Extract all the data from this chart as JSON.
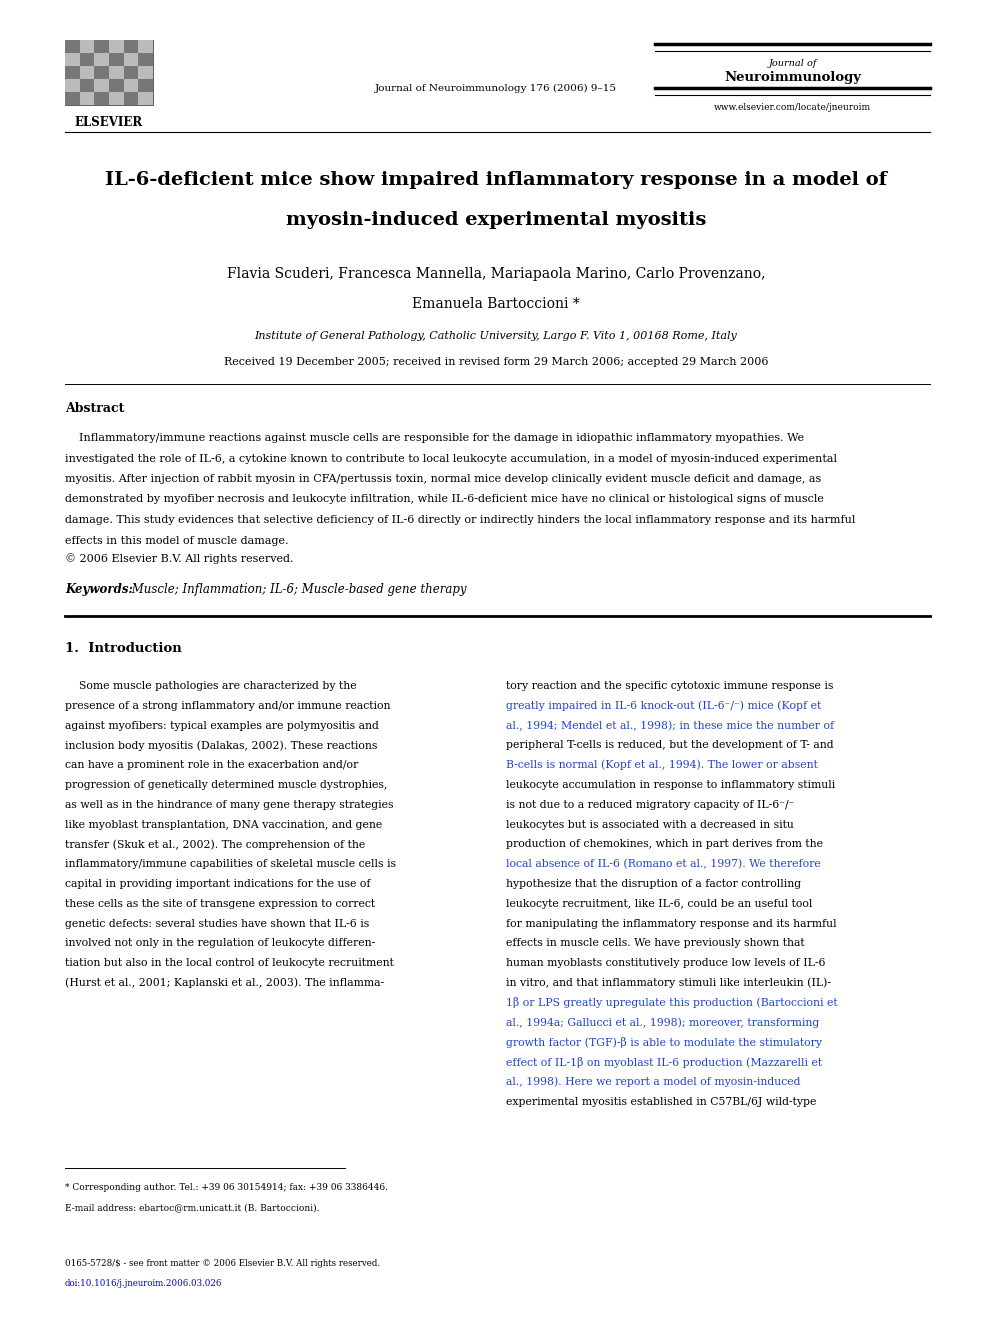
{
  "bg_color": "#ffffff",
  "page_width": 9.92,
  "page_height": 13.23,
  "elsevier_text": "ELSEVIER",
  "journal_top_right_line1": "Journal of",
  "journal_top_right_line2": "Neuroimmunology",
  "journal_center": "Journal of Neuroimmunology 176 (2006) 9–15",
  "journal_url": "www.elsevier.com/locate/jneuroim",
  "main_title_line1": "IL-6-deficient mice show impaired inflammatory response in a model of",
  "main_title_line2": "myosin-induced experimental myositis",
  "authors_line1": "Flavia Scuderi, Francesca Mannella, Mariapaola Marino, Carlo Provenzano,",
  "authors_line2": "Emanuela Bartoccioni *",
  "affiliation": "Institute of General Pathology, Catholic University, Largo F. Vito 1, 00168 Rome, Italy",
  "received": "Received 19 December 2005; received in revised form 29 March 2006; accepted 29 March 2006",
  "abstract_heading": "Abstract",
  "abstract_lines": [
    "    Inflammatory/immune reactions against muscle cells are responsible for the damage in idiopathic inflammatory myopathies. We",
    "investigated the role of IL-6, a cytokine known to contribute to local leukocyte accumulation, in a model of myosin-induced experimental",
    "myositis. After injection of rabbit myosin in CFA/pertussis toxin, normal mice develop clinically evident muscle deficit and damage, as",
    "demonstrated by myofiber necrosis and leukocyte infiltration, while IL-6-deficient mice have no clinical or histological signs of muscle",
    "damage. This study evidences that selective deficiency of IL-6 directly or indirectly hinders the local inflammatory response and its harmful",
    "effects in this model of muscle damage."
  ],
  "copyright": "© 2006 Elsevier B.V. All rights reserved.",
  "keywords_label": "Keywords:",
  "keywords_text": " Muscle; Inflammation; IL-6; Muscle-based gene therapy",
  "section1_heading": "1.  Introduction",
  "intro_col1_lines": [
    "    Some muscle pathologies are characterized by the",
    "presence of a strong inflammatory and/or immune reaction",
    "against myofibers: typical examples are polymyositis and",
    "inclusion body myositis (Dalakas, 2002). These reactions",
    "can have a prominent role in the exacerbation and/or",
    "progression of genetically determined muscle dystrophies,",
    "as well as in the hindrance of many gene therapy strategies",
    "like myoblast transplantation, DNA vaccination, and gene",
    "transfer (Skuk et al., 2002). The comprehension of the",
    "inflammatory/immune capabilities of skeletal muscle cells is",
    "capital in providing important indications for the use of",
    "these cells as the site of transgene expression to correct",
    "genetic defects: several studies have shown that IL-6 is",
    "involved not only in the regulation of leukocyte differen-",
    "tiation but also in the local control of leukocyte recruitment",
    "(Hurst et al., 2001; Kaplanski et al., 2003). The inflamma-"
  ],
  "intro_col1_blue": [],
  "intro_col2_lines": [
    "tory reaction and the specific cytotoxic immune response is",
    "greatly impaired in IL-6 knock-out (IL-6⁻/⁻) mice (Kopf et",
    "al., 1994; Mendel et al., 1998); in these mice the number of",
    "peripheral T-cells is reduced, but the development of T- and",
    "B-cells is normal (Kopf et al., 1994). The lower or absent",
    "leukocyte accumulation in response to inflammatory stimuli",
    "is not due to a reduced migratory capacity of IL-6⁻/⁻",
    "leukocytes but is associated with a decreased in situ",
    "production of chemokines, which in part derives from the",
    "local absence of IL-6 (Romano et al., 1997). We therefore",
    "hypothesize that the disruption of a factor controlling",
    "leukocyte recruitment, like IL-6, could be an useful tool",
    "for manipulating the inflammatory response and its harmful",
    "effects in muscle cells. We have previously shown that",
    "human myoblasts constitutively produce low levels of IL-6",
    "in vitro, and that inflammatory stimuli like interleukin (IL)-",
    "1β or LPS greatly upregulate this production (Bartoccioni et",
    "al., 1994a; Gallucci et al., 1998); moreover, transforming",
    "growth factor (TGF)-β is able to modulate the stimulatory",
    "effect of IL-1β on myoblast IL-6 production (Mazzarelli et",
    "al., 1998). Here we report a model of myosin-induced",
    "experimental myositis established in C57BL/6J wild-type"
  ],
  "intro_col2_blue": [
    1,
    2,
    4,
    9,
    16,
    17,
    18,
    19,
    20
  ],
  "footnote_star": "* Corresponding author. Tel.: +39 06 30154914; fax: +39 06 3386446.",
  "footnote_email": "E-mail address: ebartoc@rm.unicatt.it (B. Bartoccioni).",
  "footer_issn": "0165-5728/$ - see front matter © 2006 Elsevier B.V. All rights reserved.",
  "footer_doi": "doi:10.1016/j.jneuroim.2006.03.026"
}
